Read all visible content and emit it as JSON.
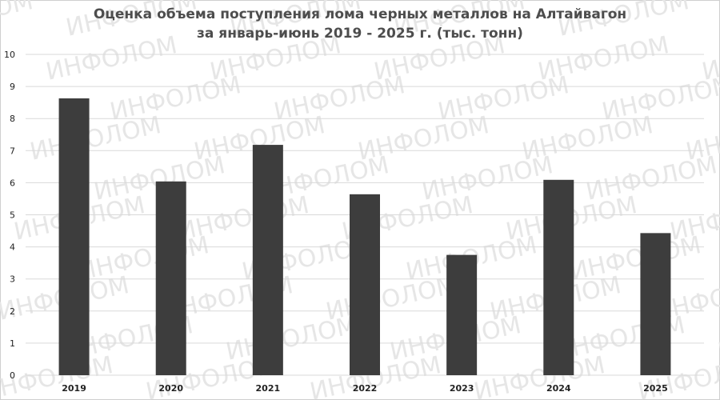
{
  "chart_data": {
    "type": "bar",
    "title": "Оценка объема поступления лома черных металлов на Алтайвагон",
    "subtitle": "за январь-июнь 2019 - 2025 г. (тыс. тонн)",
    "categories": [
      "2019",
      "2020",
      "2021",
      "2022",
      "2023",
      "2024",
      "2025"
    ],
    "values": [
      8.63,
      6.04,
      7.18,
      5.64,
      3.75,
      6.09,
      4.43
    ],
    "ylim": [
      0,
      10
    ],
    "yticks": [
      0,
      1,
      2,
      3,
      4,
      5,
      6,
      7,
      8,
      9,
      10
    ],
    "grid": true,
    "bar_color": "#3d3d3d"
  },
  "watermark": "ИНФОЛОМ",
  "colors": {
    "grid": "#d9d9d9",
    "tick_text": "#222222",
    "title_text": "#4d4d4d",
    "watermark": "#e6e6e6"
  }
}
